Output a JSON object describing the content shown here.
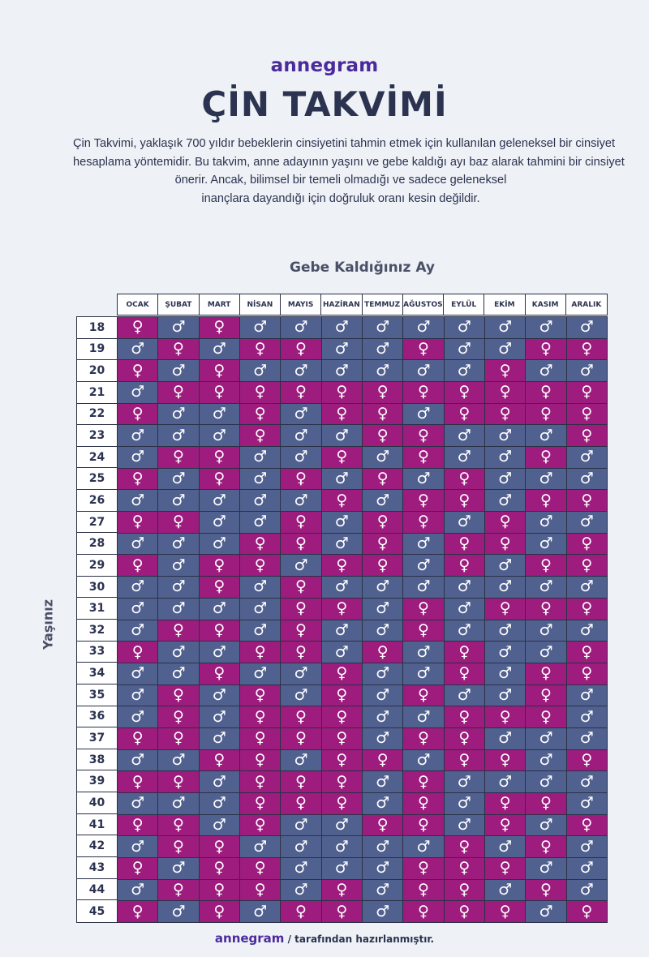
{
  "brand": "annegram",
  "title": "ÇİN TAKVİMİ",
  "description_lines": [
    "Çin Takvimi, yaklaşık 700 yıldır bebeklerin cinsiyetini  tahmin etmek için kullanılan geleneksel bir cinsiyet",
    "hesaplama yöntemidir.  Bu takvim, anne adayının yaşını ve gebe kaldığı  ayı baz alarak tahmini bir cinsiyet",
    "önerir. Ancak, bilimsel bir temeli olmadığı ve sadece geleneksel",
    "inançlara dayandığı için doğruluk oranı kesin değildir."
  ],
  "x_axis_title": "Gebe Kaldığınız Ay",
  "y_axis_title": "Yaşınız",
  "months": [
    "OCAK",
    "ŞUBAT",
    "MART",
    "NİSAN",
    "MAYIS",
    "HAZİRAN",
    "TEMMUZ",
    "AĞUSTOS",
    "EYLÜL",
    "EKİM",
    "KASIM",
    "ARALIK"
  ],
  "ages": [
    "18",
    "19",
    "20",
    "21",
    "22",
    "23",
    "24",
    "25",
    "26",
    "27",
    "28",
    "29",
    "30",
    "31",
    "32",
    "33",
    "34",
    "35",
    "36",
    "37",
    "38",
    "39",
    "40",
    "41",
    "42",
    "43",
    "44",
    "45"
  ],
  "legend": {
    "K": {
      "symbol": "♀",
      "color": "#9d1c7d"
    },
    "E": {
      "symbol": "♂",
      "color": "#51618f"
    }
  },
  "table": [
    "KEKEEEEEEEEE",
    "EKEKKEEKEEKK",
    "KEKEEEEEEKEE",
    "EKKKKKKKKKKK",
    "KEEKEKKEKKKK",
    "EEEKEEKKEEEK",
    "EKKEEKEKEEKE",
    "KEKEKEKEKEEE",
    "EEEEEKEKKEKK",
    "KKEEKEKKEKEE",
    "EEEKKEKEKKEK",
    "KEKKEKKEKEKK",
    "EEKEKEEEEEEE",
    "EEEEKKEKEKKK",
    "EKKEKEEKEEEE",
    "KEEKKEKEKEEK",
    "EEKEEKEEKEKK",
    "EKEKEKEKEEKE",
    "EKEKKKEEKKKE",
    "KKEKKKEKKEEE",
    "EEKKEKKEKKEK",
    "KKEKKKEKEEEE",
    "EEEKKKEKEKKE",
    "KKEKEEKKEKEK",
    "EKKEEEEEKEKE",
    "KEKKEEEKKKEE",
    "EKKKEKEKKEKE",
    "KEKEKKEKKKEK"
  ],
  "footer": {
    "brand": "annegram",
    "text": "/ tarafından hazırlanmıştır."
  }
}
